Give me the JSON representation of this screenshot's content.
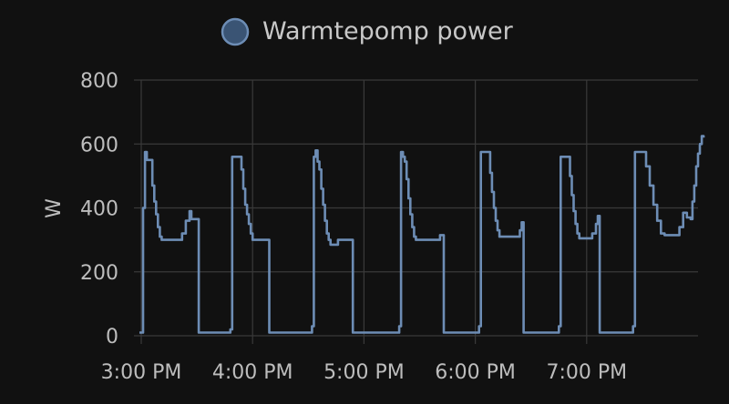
{
  "chart_data": {
    "type": "line",
    "title": "",
    "xlabel": "",
    "ylabel": "W",
    "ylim": [
      0,
      800
    ],
    "yticks": [
      "0",
      "200",
      "400",
      "600",
      "800"
    ],
    "xtick_labels": [
      "3:00 PM",
      "4:00 PM",
      "5:00 PM",
      "6:00 PM",
      "7:00 PM"
    ],
    "xticks_min": [
      0,
      60,
      120,
      180,
      240
    ],
    "xlim_min": [
      0,
      300
    ],
    "grid": true,
    "legend_position": "top-center",
    "series": [
      {
        "name": "Warmtepomp power",
        "color": "#6d8db5",
        "step": true,
        "points": [
          [
            -1,
            10
          ],
          [
            0,
            10
          ],
          [
            1,
            400
          ],
          [
            2,
            575
          ],
          [
            3,
            550
          ],
          [
            5,
            550
          ],
          [
            6,
            470
          ],
          [
            7,
            420
          ],
          [
            8,
            380
          ],
          [
            9,
            340
          ],
          [
            10,
            310
          ],
          [
            11,
            300
          ],
          [
            20,
            300
          ],
          [
            22,
            320
          ],
          [
            24,
            360
          ],
          [
            26,
            390
          ],
          [
            27,
            365
          ],
          [
            30,
            365
          ],
          [
            31,
            10
          ],
          [
            47,
            10
          ],
          [
            48,
            20
          ],
          [
            49,
            560
          ],
          [
            53,
            560
          ],
          [
            54,
            520
          ],
          [
            55,
            460
          ],
          [
            56,
            410
          ],
          [
            57,
            380
          ],
          [
            58,
            350
          ],
          [
            59,
            320
          ],
          [
            60,
            300
          ],
          [
            68,
            300
          ],
          [
            69,
            10
          ],
          [
            91,
            10
          ],
          [
            92,
            30
          ],
          [
            93,
            560
          ],
          [
            94,
            580
          ],
          [
            95,
            545
          ],
          [
            96,
            520
          ],
          [
            97,
            460
          ],
          [
            98,
            410
          ],
          [
            99,
            360
          ],
          [
            100,
            320
          ],
          [
            101,
            300
          ],
          [
            102,
            285
          ],
          [
            105,
            285
          ],
          [
            106,
            300
          ],
          [
            113,
            300
          ],
          [
            114,
            10
          ],
          [
            138,
            10
          ],
          [
            139,
            30
          ],
          [
            140,
            575
          ],
          [
            141,
            560
          ],
          [
            142,
            545
          ],
          [
            143,
            490
          ],
          [
            144,
            430
          ],
          [
            145,
            380
          ],
          [
            146,
            340
          ],
          [
            147,
            310
          ],
          [
            148,
            300
          ],
          [
            160,
            300
          ],
          [
            161,
            315
          ],
          [
            162,
            315
          ],
          [
            163,
            10
          ],
          [
            181,
            10
          ],
          [
            182,
            30
          ],
          [
            183,
            575
          ],
          [
            187,
            575
          ],
          [
            188,
            510
          ],
          [
            189,
            450
          ],
          [
            190,
            400
          ],
          [
            191,
            360
          ],
          [
            192,
            330
          ],
          [
            193,
            310
          ],
          [
            203,
            310
          ],
          [
            204,
            330
          ],
          [
            205,
            355
          ],
          [
            206,
            10
          ],
          [
            224,
            10
          ],
          [
            225,
            30
          ],
          [
            226,
            560
          ],
          [
            230,
            560
          ],
          [
            231,
            500
          ],
          [
            232,
            440
          ],
          [
            233,
            390
          ],
          [
            234,
            350
          ],
          [
            235,
            320
          ],
          [
            236,
            305
          ],
          [
            242,
            305
          ],
          [
            243,
            320
          ],
          [
            245,
            350
          ],
          [
            246,
            375
          ],
          [
            247,
            10
          ],
          [
            264,
            10
          ],
          [
            265,
            30
          ],
          [
            266,
            575
          ],
          [
            271,
            575
          ],
          [
            272,
            530
          ],
          [
            274,
            470
          ],
          [
            276,
            410
          ],
          [
            278,
            360
          ],
          [
            280,
            320
          ],
          [
            282,
            315
          ],
          [
            288,
            315
          ],
          [
            290,
            340
          ],
          [
            292,
            385
          ],
          [
            294,
            370
          ],
          [
            296,
            365
          ],
          [
            297,
            420
          ],
          [
            298,
            470
          ],
          [
            299,
            530
          ],
          [
            300,
            570
          ],
          [
            301,
            600
          ],
          [
            302,
            625
          ],
          [
            303,
            620
          ]
        ]
      }
    ]
  }
}
